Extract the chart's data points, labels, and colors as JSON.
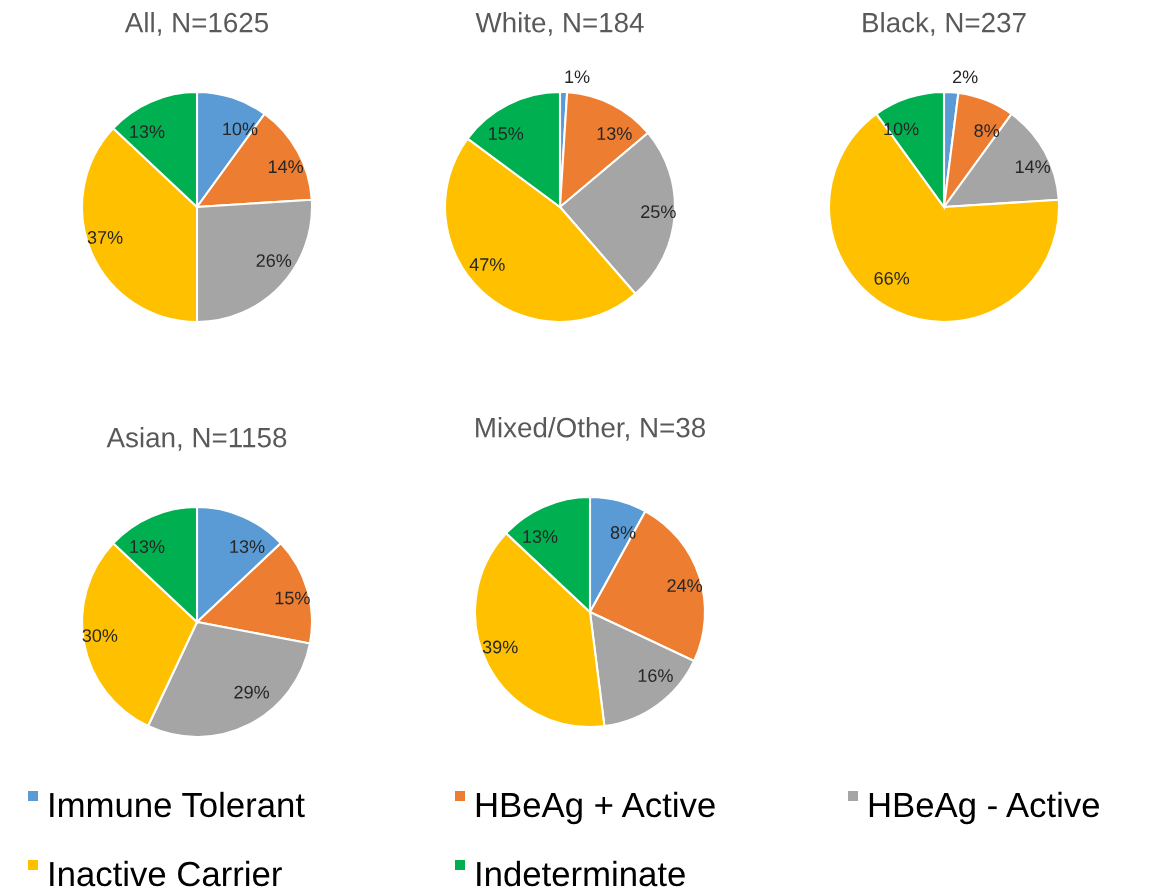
{
  "chart_data": [
    {
      "type": "pie",
      "title": "All, N=1625",
      "categories": [
        "Immune Tolerant",
        "HBeAg + Active",
        "HBeAg - Active",
        "Inactive Carrier",
        "Indeterminate"
      ],
      "values": [
        10,
        14,
        26,
        37,
        13
      ],
      "value_labels": [
        "10%",
        "14%",
        "26%",
        "37%",
        "13%"
      ],
      "colors": [
        "#5b9bd5",
        "#ed7d31",
        "#a5a5a5",
        "#ffc000",
        "#00b050"
      ],
      "legend": "bottom"
    },
    {
      "type": "pie",
      "title": "White, N=184",
      "values": [
        1,
        13,
        25,
        47,
        15
      ],
      "value_labels": [
        "1%",
        "13%",
        "25%",
        "47%",
        "15%"
      ],
      "colors": [
        "#5b9bd5",
        "#ed7d31",
        "#a5a5a5",
        "#ffc000",
        "#00b050"
      ]
    },
    {
      "type": "pie",
      "title": "Black, N=237",
      "values": [
        2,
        8,
        14,
        66,
        10
      ],
      "value_labels": [
        "2%",
        "8%",
        "14%",
        "66%",
        "10%"
      ],
      "colors": [
        "#5b9bd5",
        "#ed7d31",
        "#a5a5a5",
        "#ffc000",
        "#00b050"
      ]
    },
    {
      "type": "pie",
      "title": "Asian, N=1158",
      "values": [
        13,
        15,
        29,
        30,
        13
      ],
      "value_labels": [
        "13%",
        "15%",
        "29%",
        "30%",
        "13%"
      ],
      "colors": [
        "#5b9bd5",
        "#ed7d31",
        "#a5a5a5",
        "#ffc000",
        "#00b050"
      ]
    },
    {
      "type": "pie",
      "title": "Mixed/Other, N=38",
      "values": [
        8,
        24,
        16,
        39,
        13
      ],
      "value_labels": [
        "8%",
        "24%",
        "16%",
        "39%",
        "13%"
      ],
      "colors": [
        "#5b9bd5",
        "#ed7d31",
        "#a5a5a5",
        "#ffc000",
        "#00b050"
      ]
    }
  ]
}
